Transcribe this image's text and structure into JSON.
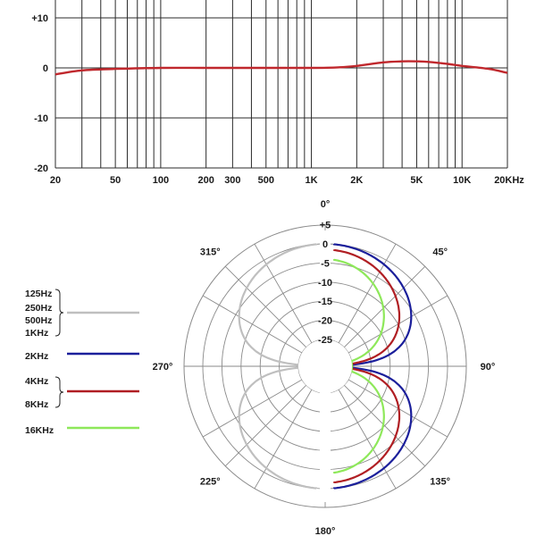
{
  "chart_data": [
    {
      "type": "line",
      "title": "",
      "xlabel": "",
      "ylabel": "",
      "x_scale": "log",
      "xlim": [
        20,
        20000
      ],
      "ylim": [
        -20,
        15
      ],
      "grid": true,
      "y_ticks": [
        {
          "value": 10,
          "label": "+10"
        },
        {
          "value": 0,
          "label": "0"
        },
        {
          "value": -10,
          "label": "-10"
        },
        {
          "value": -20,
          "label": "-20"
        }
      ],
      "x_ticks": [
        {
          "value": 20,
          "label": "20"
        },
        {
          "value": 50,
          "label": "50"
        },
        {
          "value": 100,
          "label": "100"
        },
        {
          "value": 200,
          "label": "200"
        },
        {
          "value": 300,
          "label": "300"
        },
        {
          "value": 500,
          "label": "500"
        },
        {
          "value": 1000,
          "label": "1K"
        },
        {
          "value": 2000,
          "label": "2K"
        },
        {
          "value": 5000,
          "label": "5K"
        },
        {
          "value": 10000,
          "label": "10K"
        },
        {
          "value": 20000,
          "label": "20KHz"
        }
      ],
      "series": [
        {
          "name": "frequency-response",
          "color": "#c0282d",
          "x": [
            20,
            30,
            50,
            100,
            200,
            500,
            1000,
            1500,
            2000,
            3000,
            4000,
            5000,
            6000,
            8000,
            10000,
            15000,
            20000
          ],
          "values": [
            -1.3,
            -0.5,
            -0.2,
            0.0,
            0.0,
            0.0,
            0.0,
            0.1,
            0.4,
            1.1,
            1.3,
            1.3,
            1.2,
            0.8,
            0.4,
            -0.2,
            -1.0
          ]
        }
      ]
    },
    {
      "type": "polar",
      "title": "",
      "radial_range_db": [
        -25,
        5
      ],
      "radial_labels": [
        "+5",
        "0",
        "-5",
        "-10",
        "-15",
        "-20",
        "-25"
      ],
      "angle_labels": [
        {
          "angle": 0,
          "label": "0°"
        },
        {
          "angle": 45,
          "label": "45°"
        },
        {
          "angle": 90,
          "label": "90°"
        },
        {
          "angle": 135,
          "label": "135°"
        },
        {
          "angle": 180,
          "label": "180°"
        },
        {
          "angle": 225,
          "label": "225°"
        },
        {
          "angle": 270,
          "label": "270°"
        },
        {
          "angle": 315,
          "label": "315°"
        }
      ],
      "series": [
        {
          "name": "125Hz 250Hz 500Hz 1KHz",
          "legend": [
            "125Hz",
            "250Hz",
            "500Hz",
            "1KHz"
          ],
          "color": "#bfbfbf",
          "side": "left",
          "pattern": "figure-8",
          "max_level_db": 0
        },
        {
          "name": "2KHz",
          "legend": [
            "2KHz"
          ],
          "color": "#1b1f9b",
          "side": "right",
          "pattern": "figure-8",
          "max_level_db": 0
        },
        {
          "name": "4KHz 8KHz",
          "legend": [
            "4KHz",
            "8KHz"
          ],
          "color": "#b01e23",
          "side": "right",
          "pattern": "figure-8",
          "max_level_db": -1.5
        },
        {
          "name": "16KHz",
          "legend": [
            "16KHz"
          ],
          "color": "#8ee85a",
          "side": "right",
          "pattern": "figure-8",
          "max_level_db": -4
        }
      ]
    }
  ],
  "colors": {
    "grid": "#2b2b2b",
    "polar_grid": "#8a8a8a",
    "text": "#1a1a1a"
  }
}
